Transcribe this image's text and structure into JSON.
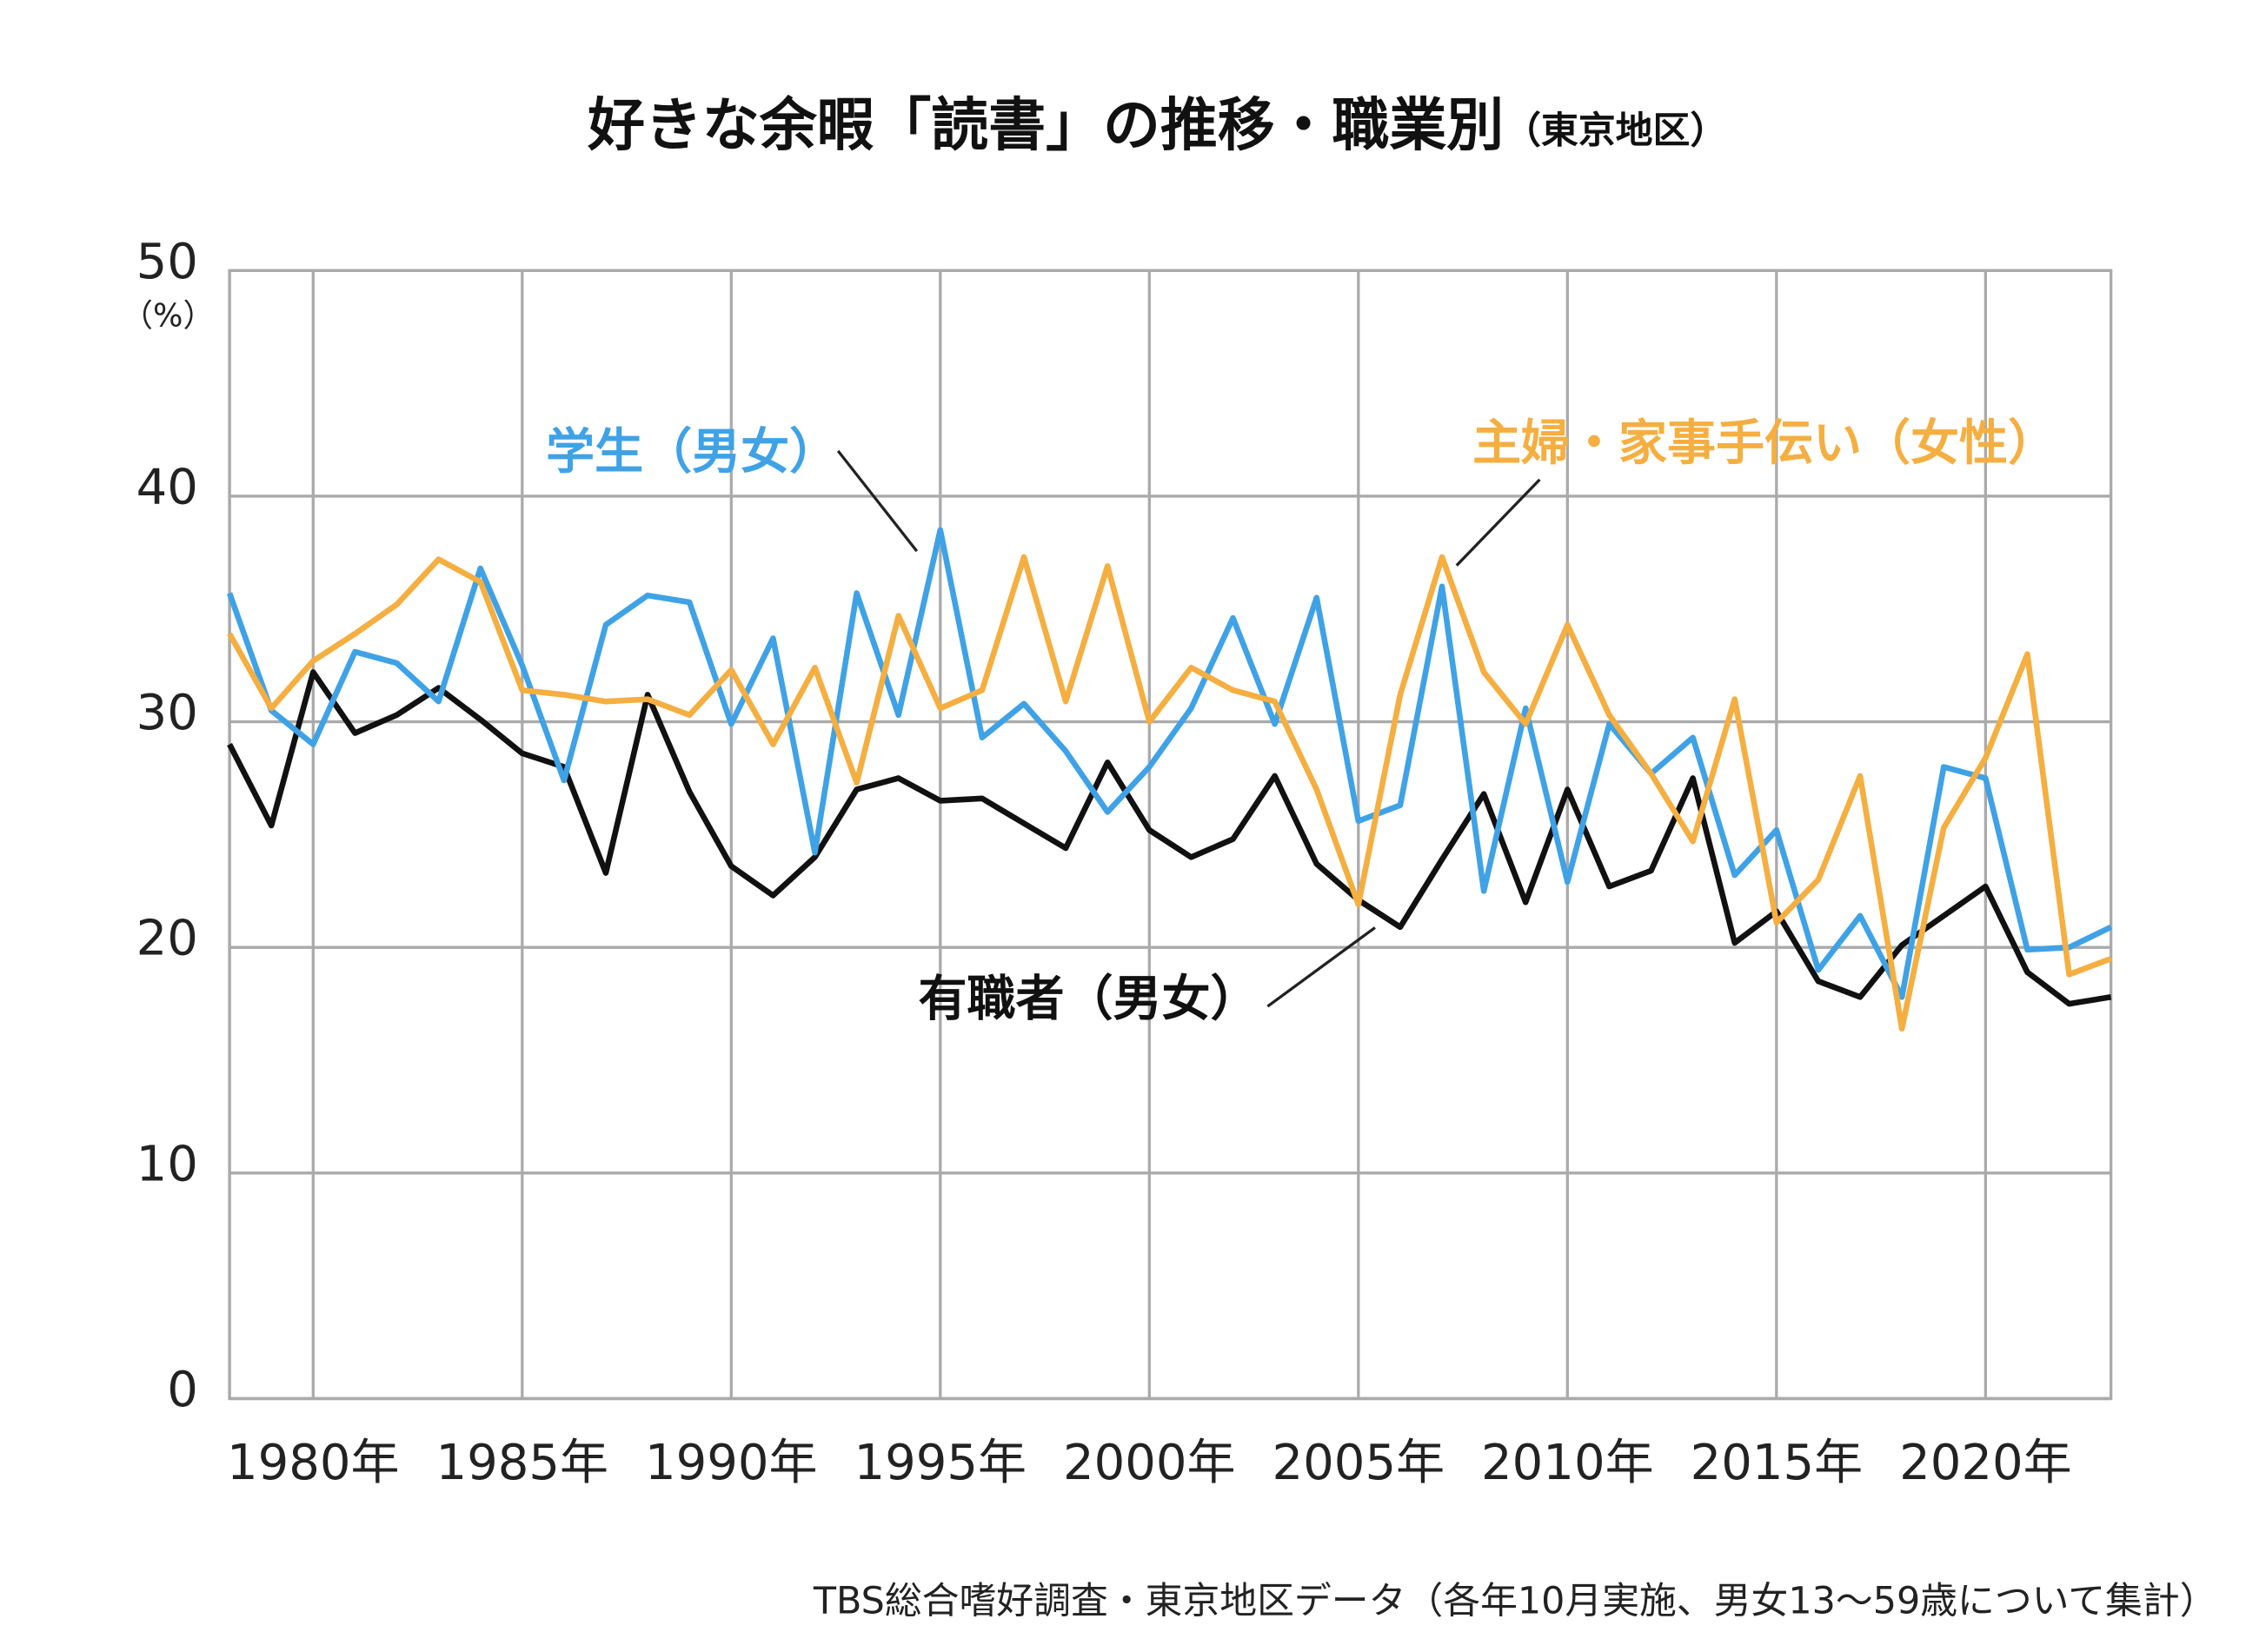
{
  "chart_data": {
    "type": "line",
    "title": "好きな余暇「読書」の推移・職業別",
    "title_note": "（東京地区）",
    "y_unit": "（%）",
    "source": "TBS総合嗜好調査・東京地区データ（各年10月実施、男女13〜59歳について集計）",
    "x": [
      1978,
      1979,
      1980,
      1981,
      1982,
      1983,
      1984,
      1985,
      1986,
      1987,
      1988,
      1989,
      1990,
      1991,
      1992,
      1993,
      1994,
      1995,
      1996,
      1997,
      1998,
      1999,
      2000,
      2001,
      2002,
      2003,
      2004,
      2005,
      2006,
      2007,
      2008,
      2009,
      2010,
      2011,
      2012,
      2013,
      2014,
      2015,
      2016,
      2017,
      2018,
      2019,
      2020,
      2021,
      2022,
      2023
    ],
    "xlim": [
      1978,
      2023
    ],
    "xticks": [
      {
        "value": 1980,
        "label": "1980年"
      },
      {
        "value": 1985,
        "label": "1985年"
      },
      {
        "value": 1990,
        "label": "1990年"
      },
      {
        "value": 1995,
        "label": "1995年"
      },
      {
        "value": 2000,
        "label": "2000年"
      },
      {
        "value": 2005,
        "label": "2005年"
      },
      {
        "value": 2010,
        "label": "2010年"
      },
      {
        "value": 2015,
        "label": "2015年"
      },
      {
        "value": 2020,
        "label": "2020年"
      }
    ],
    "ylim": [
      0,
      50
    ],
    "yticks": [
      0,
      10,
      20,
      30,
      40,
      50
    ],
    "grid": true,
    "series": [
      {
        "name": "有職者（男女）",
        "color": "#111111",
        "values": [
          29.0,
          25.4,
          32.2,
          29.5,
          30.3,
          31.5,
          30.1,
          28.6,
          28.0,
          23.3,
          31.2,
          26.9,
          23.6,
          22.3,
          24.0,
          27.0,
          27.5,
          26.5,
          26.6,
          25.5,
          24.4,
          28.2,
          25.2,
          24.0,
          24.8,
          27.6,
          23.7,
          22.1,
          20.9,
          23.9,
          26.8,
          22.0,
          27.0,
          22.7,
          23.4,
          27.5,
          20.2,
          21.6,
          18.5,
          17.8,
          20.1,
          21.4,
          22.7,
          18.9,
          17.5,
          17.8
        ]
      },
      {
        "name": "学生（男女）",
        "color": "#3fa2e6",
        "values": [
          35.7,
          30.5,
          29.0,
          33.1,
          32.6,
          30.9,
          36.8,
          32.5,
          27.4,
          34.3,
          35.6,
          35.3,
          29.9,
          33.7,
          24.2,
          35.7,
          30.3,
          38.5,
          29.3,
          30.8,
          28.7,
          26.0,
          28.0,
          30.6,
          34.6,
          29.9,
          35.5,
          25.6,
          26.3,
          36.0,
          22.5,
          30.6,
          22.9,
          29.9,
          27.7,
          29.3,
          23.2,
          25.2,
          19.0,
          21.4,
          17.8,
          28.0,
          27.5,
          19.9,
          20.0,
          20.9
        ]
      },
      {
        "name": "主婦・家事手伝い（女性）",
        "color": "#f5ae40",
        "values": [
          33.9,
          30.6,
          32.7,
          33.9,
          35.2,
          37.2,
          36.2,
          31.4,
          31.2,
          30.9,
          31.0,
          30.3,
          32.3,
          29.0,
          32.4,
          27.3,
          34.7,
          30.6,
          31.4,
          37.3,
          30.9,
          36.9,
          30.0,
          32.4,
          31.4,
          30.9,
          27.0,
          21.9,
          31.2,
          37.3,
          32.2,
          29.9,
          34.3,
          30.3,
          27.7,
          24.7,
          31.0,
          21.1,
          23.0,
          27.6,
          16.4,
          25.3,
          28.4,
          33.0,
          18.8,
          19.5
        ]
      }
    ]
  }
}
